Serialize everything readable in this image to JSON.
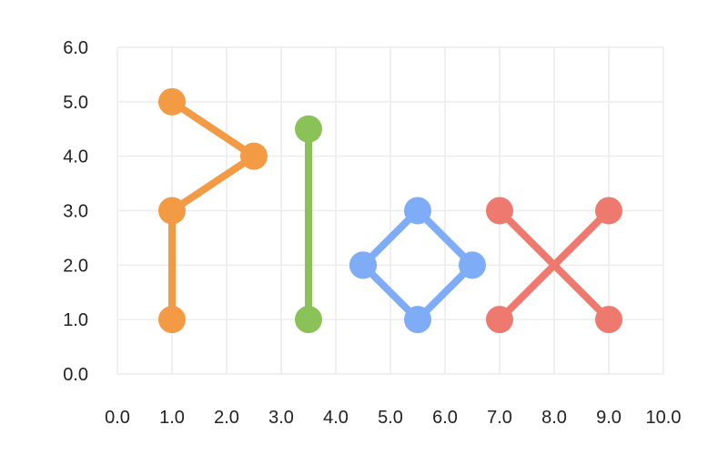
{
  "chart_data": {
    "type": "line",
    "title": "",
    "xlabel": "",
    "ylabel": "",
    "xlim": [
      0,
      10
    ],
    "ylim": [
      0,
      6
    ],
    "x_ticks": [
      "0.0",
      "1.0",
      "2.0",
      "3.0",
      "4.0",
      "5.0",
      "6.0",
      "7.0",
      "8.0",
      "9.0",
      "10.0"
    ],
    "y_ticks": [
      "0.0",
      "1.0",
      "2.0",
      "3.0",
      "4.0",
      "5.0",
      "6.0"
    ],
    "grid": true,
    "legend": "none",
    "series": [
      {
        "color": "#F39A45",
        "points": [
          [
            1.0,
            1.0
          ],
          [
            1.0,
            3.0
          ],
          [
            2.5,
            4.0
          ],
          [
            1.0,
            5.0
          ]
        ]
      },
      {
        "color": "#8BC258",
        "points": [
          [
            3.5,
            1.0
          ],
          [
            3.5,
            4.5
          ]
        ]
      },
      {
        "color": "#7FACF7",
        "points": [
          [
            4.5,
            2.0
          ],
          [
            5.5,
            3.0
          ],
          [
            6.5,
            2.0
          ],
          [
            5.5,
            1.0
          ],
          [
            4.5,
            2.0
          ]
        ]
      },
      {
        "color": "#EE7A6F",
        "points": [
          [
            7.0,
            3.0
          ],
          [
            9.0,
            1.0
          ]
        ]
      },
      {
        "color": "#EE7A6F",
        "points": [
          [
            7.0,
            1.0
          ],
          [
            9.0,
            3.0
          ]
        ]
      }
    ]
  }
}
